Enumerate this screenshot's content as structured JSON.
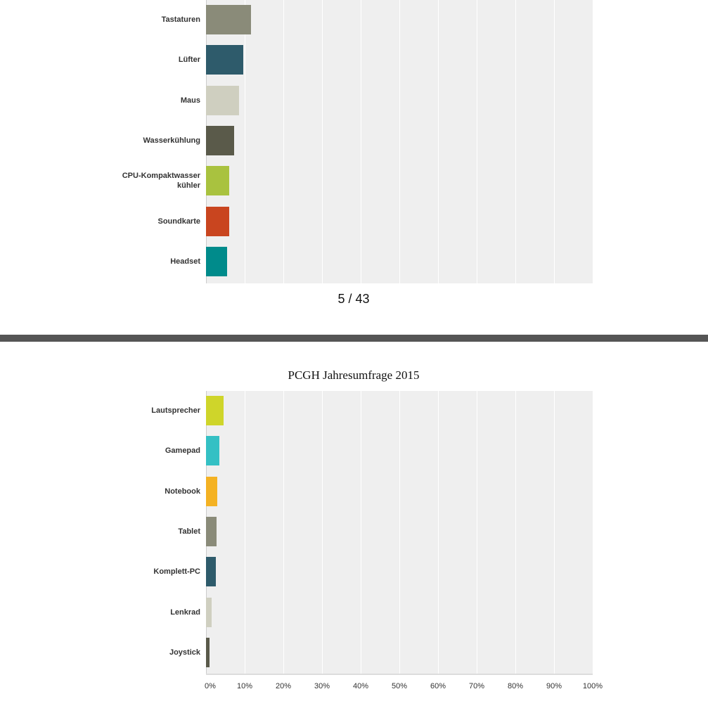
{
  "page_indicator": "5 / 43",
  "chart_data": [
    {
      "type": "barh",
      "categories": [
        "Tastaturen",
        "Lüfter",
        "Maus",
        "Wasserkühlung",
        "CPU-Kompaktwasserkühler",
        "Soundkarte",
        "Headset"
      ],
      "values": [
        11.6,
        9.6,
        8.5,
        7.3,
        6.0,
        6.0,
        5.5
      ],
      "colors": [
        "#8a8b79",
        "#2e5b6b",
        "#cfcfc0",
        "#5a5a4a",
        "#a9c23f",
        "#c9451f",
        "#008b8b"
      ],
      "xlim": [
        0,
        100
      ],
      "xticks": [
        0,
        10,
        20,
        30,
        40,
        50,
        60,
        70,
        80,
        90,
        100
      ],
      "grid": true
    },
    {
      "type": "barh",
      "title": "PCGH Jahresumfrage 2015",
      "categories": [
        "Lautsprecher",
        "Gamepad",
        "Notebook",
        "Tablet",
        "Komplett-PC",
        "Lenkrad",
        "Joystick"
      ],
      "values": [
        4.5,
        3.5,
        2.9,
        2.7,
        2.5,
        1.5,
        0.9
      ],
      "colors": [
        "#cfd52a",
        "#34c0c4",
        "#f4b223",
        "#8a8b79",
        "#2e5b6b",
        "#cfcfc0",
        "#5a5a4a"
      ],
      "xlim": [
        0,
        100
      ],
      "xticks": [
        {
          "value": 0,
          "label": "0%"
        },
        {
          "value": 10,
          "label": "10%"
        },
        {
          "value": 20,
          "label": "20%"
        },
        {
          "value": 30,
          "label": "30%"
        },
        {
          "value": 40,
          "label": "40%"
        },
        {
          "value": 50,
          "label": "50%"
        },
        {
          "value": 60,
          "label": "60%"
        },
        {
          "value": 70,
          "label": "70%"
        },
        {
          "value": 80,
          "label": "80%"
        },
        {
          "value": 90,
          "label": "90%"
        },
        {
          "value": 100,
          "label": "100%"
        }
      ],
      "grid": true
    }
  ]
}
